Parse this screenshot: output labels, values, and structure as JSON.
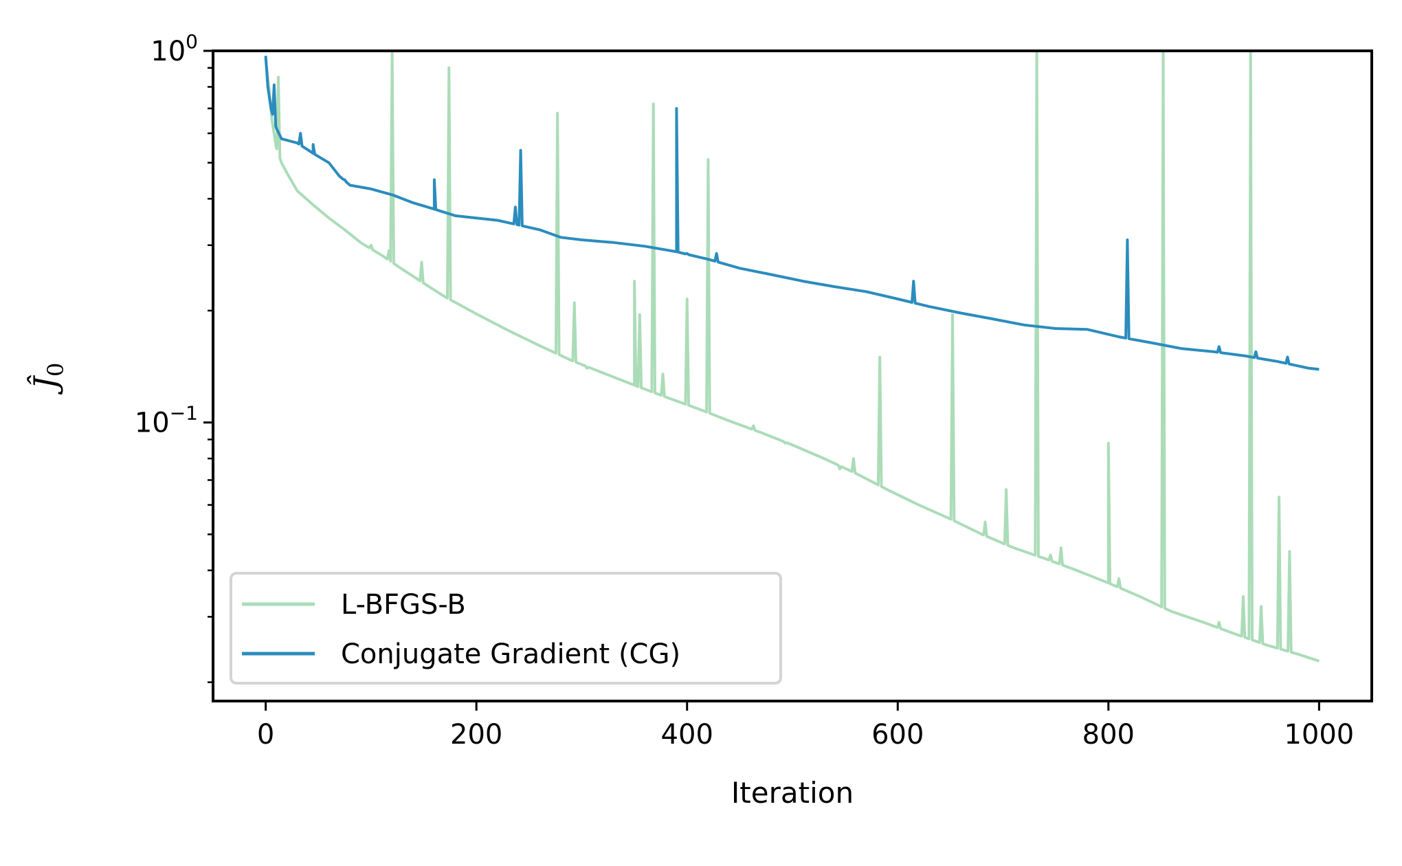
{
  "chart_data": {
    "type": "line",
    "title": "",
    "xlabel": "Iteration",
    "ylabel_base": "Ĵ",
    "ylabel_sub": "0",
    "xlim": [
      -50,
      1050
    ],
    "ylim": [
      0.0178,
      1.0
    ],
    "yscale": "log",
    "grid": false,
    "legend_position": "lower-left",
    "x_ticks": [
      {
        "value": 0,
        "label": "0"
      },
      {
        "value": 200,
        "label": "200"
      },
      {
        "value": 400,
        "label": "400"
      },
      {
        "value": 600,
        "label": "600"
      },
      {
        "value": 800,
        "label": "800"
      },
      {
        "value": 1000,
        "label": "1000"
      }
    ],
    "y_ticks": [
      {
        "value": 1.0,
        "base": "10",
        "exp": "0"
      },
      {
        "value": 0.1,
        "base": "10",
        "exp": "−1"
      }
    ],
    "series": [
      {
        "name": "L-BFGS-B",
        "color": "#abdcb8",
        "baseline": [
          [
            0,
            0.95
          ],
          [
            3,
            0.8
          ],
          [
            6,
            0.65
          ],
          [
            10,
            0.55
          ],
          [
            15,
            0.5
          ],
          [
            20,
            0.47
          ],
          [
            30,
            0.42
          ],
          [
            45,
            0.385
          ],
          [
            60,
            0.355
          ],
          [
            75,
            0.33
          ],
          [
            90,
            0.305
          ],
          [
            110,
            0.282
          ],
          [
            130,
            0.258
          ],
          [
            150,
            0.237
          ],
          [
            170,
            0.218
          ],
          [
            200,
            0.196
          ],
          [
            230,
            0.177
          ],
          [
            260,
            0.161
          ],
          [
            290,
            0.147
          ],
          [
            320,
            0.136
          ],
          [
            350,
            0.126
          ],
          [
            380,
            0.117
          ],
          [
            410,
            0.109
          ],
          [
            440,
            0.101
          ],
          [
            470,
            0.094
          ],
          [
            500,
            0.087
          ],
          [
            530,
            0.08
          ],
          [
            560,
            0.073
          ],
          [
            590,
            0.066
          ],
          [
            620,
            0.06
          ],
          [
            650,
            0.055
          ],
          [
            680,
            0.05
          ],
          [
            710,
            0.046
          ],
          [
            740,
            0.043
          ],
          [
            770,
            0.04
          ],
          [
            800,
            0.037
          ],
          [
            830,
            0.034
          ],
          [
            860,
            0.031
          ],
          [
            890,
            0.029
          ],
          [
            920,
            0.027
          ],
          [
            950,
            0.0252
          ],
          [
            980,
            0.0238
          ],
          [
            1000,
            0.0228
          ]
        ],
        "spikes": [
          [
            12,
            0.85
          ],
          [
            100,
            0.3
          ],
          [
            117,
            0.29
          ],
          [
            120,
            1.0
          ],
          [
            148,
            0.27
          ],
          [
            174,
            0.9
          ],
          [
            277,
            0.68
          ],
          [
            293,
            0.21
          ],
          [
            305,
            0.14
          ],
          [
            350,
            0.24
          ],
          [
            355,
            0.195
          ],
          [
            368,
            0.72
          ],
          [
            377,
            0.135
          ],
          [
            400,
            0.215
          ],
          [
            420,
            0.51
          ],
          [
            463,
            0.098
          ],
          [
            493,
            0.088
          ],
          [
            545,
            0.075
          ],
          [
            558,
            0.08
          ],
          [
            583,
            0.15
          ],
          [
            652,
            0.195
          ],
          [
            683,
            0.054
          ],
          [
            703,
            0.066
          ],
          [
            732,
            1.0
          ],
          [
            745,
            0.044
          ],
          [
            755,
            0.046
          ],
          [
            800,
            0.088
          ],
          [
            810,
            0.038
          ],
          [
            852,
            1.0
          ],
          [
            905,
            0.029
          ],
          [
            928,
            0.034
          ],
          [
            935,
            1.0
          ],
          [
            945,
            0.032
          ],
          [
            962,
            0.063
          ],
          [
            972,
            0.045
          ]
        ]
      },
      {
        "name": "Conjugate Gradient (CG)",
        "color": "#2b8cbe",
        "baseline": [
          [
            0,
            0.97
          ],
          [
            2,
            0.8
          ],
          [
            5,
            0.7
          ],
          [
            10,
            0.62
          ],
          [
            15,
            0.58
          ],
          [
            30,
            0.565
          ],
          [
            45,
            0.53
          ],
          [
            60,
            0.5
          ],
          [
            70,
            0.46
          ],
          [
            80,
            0.435
          ],
          [
            100,
            0.425
          ],
          [
            120,
            0.41
          ],
          [
            140,
            0.39
          ],
          [
            160,
            0.375
          ],
          [
            180,
            0.36
          ],
          [
            200,
            0.355
          ],
          [
            220,
            0.35
          ],
          [
            240,
            0.34
          ],
          [
            260,
            0.33
          ],
          [
            280,
            0.315
          ],
          [
            300,
            0.31
          ],
          [
            330,
            0.305
          ],
          [
            360,
            0.298
          ],
          [
            390,
            0.288
          ],
          [
            420,
            0.275
          ],
          [
            450,
            0.26
          ],
          [
            480,
            0.25
          ],
          [
            510,
            0.24
          ],
          [
            540,
            0.232
          ],
          [
            570,
            0.225
          ],
          [
            600,
            0.215
          ],
          [
            630,
            0.205
          ],
          [
            660,
            0.197
          ],
          [
            690,
            0.19
          ],
          [
            720,
            0.183
          ],
          [
            750,
            0.179
          ],
          [
            780,
            0.178
          ],
          [
            810,
            0.17
          ],
          [
            840,
            0.164
          ],
          [
            870,
            0.158
          ],
          [
            900,
            0.155
          ],
          [
            930,
            0.151
          ],
          [
            960,
            0.146
          ],
          [
            990,
            0.14
          ],
          [
            1000,
            0.139
          ]
        ],
        "spikes": [
          [
            8,
            0.81
          ],
          [
            33,
            0.6
          ],
          [
            45,
            0.56
          ],
          [
            75,
            0.45
          ],
          [
            160,
            0.45
          ],
          [
            237,
            0.38
          ],
          [
            242,
            0.54
          ],
          [
            390,
            0.7
          ],
          [
            400,
            0.285
          ],
          [
            428,
            0.285
          ],
          [
            615,
            0.24
          ],
          [
            818,
            0.31
          ],
          [
            905,
            0.16
          ],
          [
            940,
            0.155
          ],
          [
            970,
            0.15
          ]
        ]
      }
    ]
  }
}
